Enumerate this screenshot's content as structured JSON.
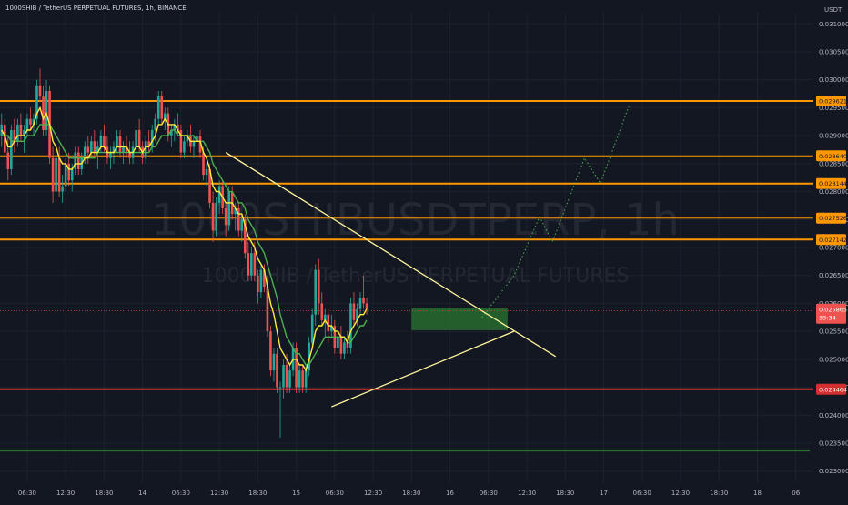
{
  "chart_data": {
    "type": "candlestick",
    "symbol_line": "1000SHIB / TetherUS PERPETUAL FUTURES, 1h, BINANCE",
    "currency_label": "USDT",
    "watermark": {
      "main": "1000SHIBUSDTPERP, 1h",
      "sub": "1000SHIB / TetherUS PERPETUAL FUTURES"
    },
    "y_axis": {
      "range": [
        0.0228,
        0.0312
      ],
      "ticks": [
        "0.031000",
        "0.030500",
        "0.030000",
        "0.029500",
        "0.029000",
        "0.028500",
        "0.028000",
        "0.027500",
        "0.027000",
        "0.026500",
        "0.026000",
        "0.025500",
        "0.025000",
        "0.024500",
        "0.024000",
        "0.023500",
        "0.023000"
      ]
    },
    "x_axis": {
      "ticks": [
        {
          "label": "06:30",
          "slot": 8
        },
        {
          "label": "12:30",
          "slot": 20
        },
        {
          "label": "18:30",
          "slot": 32
        },
        {
          "label": "14",
          "slot": 44
        },
        {
          "label": "06:30",
          "slot": 56
        },
        {
          "label": "12:30",
          "slot": 68
        },
        {
          "label": "18:30",
          "slot": 80
        },
        {
          "label": "15",
          "slot": 92
        },
        {
          "label": "06:30",
          "slot": 104
        },
        {
          "label": "12:30",
          "slot": 116
        },
        {
          "label": "18:30",
          "slot": 128
        },
        {
          "label": "16",
          "slot": 140
        },
        {
          "label": "06:30",
          "slot": 152
        },
        {
          "label": "12:30",
          "slot": 164
        },
        {
          "label": "18:30",
          "slot": 176
        },
        {
          "label": "17",
          "slot": 188
        },
        {
          "label": "06:30",
          "slot": 200
        },
        {
          "label": "12:30",
          "slot": 212
        },
        {
          "label": "18:30",
          "slot": 224
        },
        {
          "label": "18",
          "slot": 236
        },
        {
          "label": "06",
          "slot": 248
        }
      ]
    },
    "candles": [
      [
        0.029,
        0.0294,
        0.0288,
        0.0292
      ],
      [
        0.0292,
        0.0293,
        0.0286,
        0.0287
      ],
      [
        0.0287,
        0.029,
        0.0282,
        0.0284
      ],
      [
        0.0284,
        0.0292,
        0.0283,
        0.0291
      ],
      [
        0.0291,
        0.0293,
        0.0287,
        0.0289
      ],
      [
        0.0289,
        0.0293,
        0.0288,
        0.0292
      ],
      [
        0.0292,
        0.0294,
        0.0289,
        0.029
      ],
      [
        0.029,
        0.0292,
        0.0287,
        0.0291
      ],
      [
        0.0291,
        0.0294,
        0.029,
        0.0293
      ],
      [
        0.0293,
        0.0295,
        0.0291,
        0.0292
      ],
      [
        0.0292,
        0.0294,
        0.029,
        0.0293
      ],
      [
        0.0293,
        0.03,
        0.0292,
        0.0299
      ],
      [
        0.0299,
        0.0302,
        0.0296,
        0.0297
      ],
      [
        0.0297,
        0.0299,
        0.029,
        0.0291
      ],
      [
        0.0291,
        0.03,
        0.029,
        0.0298
      ],
      [
        0.0298,
        0.0299,
        0.0285,
        0.0286
      ],
      [
        0.0286,
        0.0288,
        0.0278,
        0.028
      ],
      [
        0.028,
        0.0287,
        0.0279,
        0.0286
      ],
      [
        0.0286,
        0.0288,
        0.0279,
        0.028
      ],
      [
        0.028,
        0.0283,
        0.0278,
        0.0281
      ],
      [
        0.0281,
        0.0286,
        0.028,
        0.0285
      ],
      [
        0.0285,
        0.0287,
        0.0281,
        0.0282
      ],
      [
        0.0282,
        0.0285,
        0.028,
        0.0284
      ],
      [
        0.0284,
        0.0288,
        0.0283,
        0.0287
      ],
      [
        0.0287,
        0.0288,
        0.0283,
        0.0284
      ],
      [
        0.0284,
        0.0287,
        0.0283,
        0.0286
      ],
      [
        0.0286,
        0.0289,
        0.0285,
        0.0288
      ],
      [
        0.0288,
        0.029,
        0.0285,
        0.0287
      ],
      [
        0.0287,
        0.029,
        0.0286,
        0.0289
      ],
      [
        0.0289,
        0.0291,
        0.0286,
        0.0287
      ],
      [
        0.0287,
        0.0289,
        0.0284,
        0.0288
      ],
      [
        0.0288,
        0.0291,
        0.0287,
        0.029
      ],
      [
        0.029,
        0.0292,
        0.0287,
        0.0288
      ],
      [
        0.0288,
        0.029,
        0.0285,
        0.0286
      ],
      [
        0.0286,
        0.0288,
        0.0284,
        0.0287
      ],
      [
        0.0287,
        0.0289,
        0.0285,
        0.0288
      ],
      [
        0.0288,
        0.0291,
        0.0287,
        0.029
      ],
      [
        0.029,
        0.0291,
        0.0286,
        0.0287
      ],
      [
        0.0287,
        0.0289,
        0.0285,
        0.0288
      ],
      [
        0.0288,
        0.029,
        0.0286,
        0.0287
      ],
      [
        0.0287,
        0.0289,
        0.0285,
        0.0286
      ],
      [
        0.0286,
        0.0289,
        0.0285,
        0.0288
      ],
      [
        0.0288,
        0.0292,
        0.0287,
        0.0291
      ],
      [
        0.0291,
        0.0293,
        0.0287,
        0.0288
      ],
      [
        0.0288,
        0.0289,
        0.0285,
        0.0286
      ],
      [
        0.0286,
        0.029,
        0.0285,
        0.0289
      ],
      [
        0.0289,
        0.0291,
        0.0287,
        0.0288
      ],
      [
        0.0288,
        0.0292,
        0.0287,
        0.0291
      ],
      [
        0.0291,
        0.0294,
        0.0289,
        0.0293
      ],
      [
        0.0293,
        0.0298,
        0.0292,
        0.0297
      ],
      [
        0.0297,
        0.0298,
        0.0292,
        0.0293
      ],
      [
        0.0293,
        0.0295,
        0.0291,
        0.0294
      ],
      [
        0.0294,
        0.0295,
        0.0289,
        0.029
      ],
      [
        0.029,
        0.0292,
        0.0288,
        0.0291
      ],
      [
        0.0291,
        0.0293,
        0.0289,
        0.0292
      ],
      [
        0.0292,
        0.0294,
        0.029,
        0.0291
      ],
      [
        0.0291,
        0.0292,
        0.0286,
        0.0287
      ],
      [
        0.0287,
        0.029,
        0.0286,
        0.0289
      ],
      [
        0.0289,
        0.0291,
        0.0288,
        0.029
      ],
      [
        0.029,
        0.0292,
        0.0287,
        0.0288
      ],
      [
        0.0288,
        0.029,
        0.0286,
        0.0289
      ],
      [
        0.0289,
        0.0291,
        0.0287,
        0.029
      ],
      [
        0.029,
        0.0291,
        0.0286,
        0.0287
      ],
      [
        0.0287,
        0.0288,
        0.0282,
        0.0283
      ],
      [
        0.0283,
        0.0285,
        0.0281,
        0.0284
      ],
      [
        0.0284,
        0.0285,
        0.0277,
        0.0278
      ],
      [
        0.0278,
        0.028,
        0.0271,
        0.0273
      ],
      [
        0.0273,
        0.0279,
        0.0272,
        0.0278
      ],
      [
        0.0278,
        0.0282,
        0.0276,
        0.0281
      ],
      [
        0.0281,
        0.0282,
        0.0276,
        0.0277
      ],
      [
        0.0277,
        0.0278,
        0.0272,
        0.0274
      ],
      [
        0.0274,
        0.0281,
        0.0273,
        0.028
      ],
      [
        0.028,
        0.0281,
        0.0275,
        0.0276
      ],
      [
        0.0276,
        0.0278,
        0.0273,
        0.0277
      ],
      [
        0.0277,
        0.0278,
        0.0272,
        0.0273
      ],
      [
        0.0273,
        0.0276,
        0.0271,
        0.0275
      ],
      [
        0.0275,
        0.0276,
        0.0268,
        0.0269
      ],
      [
        0.0269,
        0.0271,
        0.0264,
        0.0265
      ],
      [
        0.0265,
        0.027,
        0.0264,
        0.0269
      ],
      [
        0.0269,
        0.0271,
        0.0264,
        0.0265
      ],
      [
        0.0265,
        0.0266,
        0.026,
        0.0262
      ],
      [
        0.0262,
        0.0267,
        0.0261,
        0.0266
      ],
      [
        0.0266,
        0.0267,
        0.0262,
        0.0263
      ],
      [
        0.0263,
        0.0265,
        0.0254,
        0.0255
      ],
      [
        0.0255,
        0.0256,
        0.0247,
        0.0248
      ],
      [
        0.0248,
        0.0252,
        0.0246,
        0.0251
      ],
      [
        0.0251,
        0.0252,
        0.0244,
        0.0245
      ],
      [
        0.0245,
        0.0246,
        0.0236,
        0.0245
      ],
      [
        0.0245,
        0.025,
        0.0243,
        0.0249
      ],
      [
        0.0249,
        0.0251,
        0.0244,
        0.0245
      ],
      [
        0.0245,
        0.0249,
        0.0244,
        0.0248
      ],
      [
        0.0248,
        0.0253,
        0.0247,
        0.0252
      ],
      [
        0.0252,
        0.0253,
        0.0244,
        0.0245
      ],
      [
        0.0245,
        0.0249,
        0.0244,
        0.0248
      ],
      [
        0.0248,
        0.0249,
        0.0244,
        0.0245
      ],
      [
        0.0245,
        0.0249,
        0.0244,
        0.0248
      ],
      [
        0.0248,
        0.0254,
        0.0247,
        0.0253
      ],
      [
        0.0253,
        0.0259,
        0.0252,
        0.0258
      ],
      [
        0.0258,
        0.0267,
        0.0256,
        0.0266
      ],
      [
        0.0266,
        0.0268,
        0.0258,
        0.026
      ],
      [
        0.026,
        0.0262,
        0.0256,
        0.0257
      ],
      [
        0.0257,
        0.0259,
        0.0254,
        0.0258
      ],
      [
        0.0258,
        0.0259,
        0.0253,
        0.0255
      ],
      [
        0.0255,
        0.0258,
        0.0254,
        0.0256
      ],
      [
        0.0256,
        0.0257,
        0.0251,
        0.0252
      ],
      [
        0.0252,
        0.0255,
        0.0251,
        0.0254
      ],
      [
        0.0254,
        0.0256,
        0.025,
        0.0251
      ],
      [
        0.0251,
        0.0254,
        0.025,
        0.0253
      ],
      [
        0.0253,
        0.0255,
        0.0251,
        0.0252
      ],
      [
        0.0252,
        0.0261,
        0.0251,
        0.026
      ],
      [
        0.026,
        0.0262,
        0.0256,
        0.0257
      ],
      [
        0.0257,
        0.026,
        0.0256,
        0.0259
      ],
      [
        0.0259,
        0.0262,
        0.0258,
        0.0261
      ],
      [
        0.0261,
        0.0265,
        0.0259,
        0.026
      ],
      [
        0.026,
        0.0261,
        0.0258,
        0.0259
      ]
    ],
    "ma_fast": [
      0.0291,
      0.029,
      0.0288,
      0.0288,
      0.0289,
      0.029,
      0.029,
      0.029,
      0.0291,
      0.0291,
      0.0292,
      0.0294,
      0.0295,
      0.0293,
      0.0294,
      0.0292,
      0.0289,
      0.0288,
      0.0286,
      0.0285,
      0.0285,
      0.0284,
      0.0284,
      0.0285,
      0.0285,
      0.0285,
      0.0286,
      0.0286,
      0.0287,
      0.0287,
      0.0287,
      0.0288,
      0.0288,
      0.0287,
      0.0287,
      0.0287,
      0.0288,
      0.0288,
      0.0288,
      0.0288,
      0.0287,
      0.0287,
      0.0288,
      0.0288,
      0.0287,
      0.0288,
      0.0288,
      0.0289,
      0.029,
      0.0292,
      0.0292,
      0.0293,
      0.0292,
      0.0292,
      0.0292,
      0.0291,
      0.029,
      0.029,
      0.029,
      0.0289,
      0.0289,
      0.0289,
      0.0289,
      0.0287,
      0.0286,
      0.0284,
      0.0281,
      0.028,
      0.028,
      0.0279,
      0.0278,
      0.0278,
      0.0278,
      0.0277,
      0.0276,
      0.0276,
      0.0274,
      0.0272,
      0.0271,
      0.027,
      0.0268,
      0.0267,
      0.0266,
      0.0263,
      0.026,
      0.0258,
      0.0255,
      0.0252,
      0.0251,
      0.025,
      0.0249,
      0.025,
      0.025,
      0.0249,
      0.0249,
      0.0248,
      0.025,
      0.0252,
      0.0255,
      0.0256,
      0.0256,
      0.0257,
      0.0256,
      0.0256,
      0.0255,
      0.0255,
      0.0254,
      0.0254,
      0.0253,
      0.0255,
      0.0256,
      0.0257,
      0.0258,
      0.0258,
      0.0259
    ],
    "ma_slow": [
      0.029,
      0.029,
      0.029,
      0.0289,
      0.0289,
      0.0289,
      0.0289,
      0.0289,
      0.029,
      0.029,
      0.029,
      0.0291,
      0.0292,
      0.0292,
      0.0292,
      0.0292,
      0.0291,
      0.029,
      0.0289,
      0.0288,
      0.0287,
      0.0286,
      0.0286,
      0.0286,
      0.0286,
      0.0286,
      0.0286,
      0.0286,
      0.0286,
      0.0286,
      0.0287,
      0.0287,
      0.0287,
      0.0287,
      0.0287,
      0.0287,
      0.0287,
      0.0287,
      0.0287,
      0.0287,
      0.0287,
      0.0287,
      0.0287,
      0.0287,
      0.0287,
      0.0287,
      0.0287,
      0.0288,
      0.0288,
      0.0289,
      0.029,
      0.029,
      0.029,
      0.0291,
      0.0291,
      0.029,
      0.029,
      0.029,
      0.029,
      0.029,
      0.029,
      0.0289,
      0.0289,
      0.0289,
      0.0288,
      0.0287,
      0.0285,
      0.0284,
      0.0283,
      0.0282,
      0.0281,
      0.028,
      0.028,
      0.0279,
      0.0278,
      0.0278,
      0.0277,
      0.0275,
      0.0274,
      0.0273,
      0.0271,
      0.027,
      0.0269,
      0.0267,
      0.0265,
      0.0263,
      0.0261,
      0.0258,
      0.0256,
      0.0254,
      0.0253,
      0.0252,
      0.0251,
      0.0251,
      0.025,
      0.0249,
      0.0249,
      0.025,
      0.0251,
      0.0252,
      0.0253,
      0.0254,
      0.0254,
      0.0254,
      0.0254,
      0.0254,
      0.0254,
      0.0254,
      0.0253,
      0.0253,
      0.0254,
      0.0255,
      0.0256,
      0.0256,
      0.0257
    ],
    "horizontal_levels": [
      {
        "price": 0.029621,
        "color": "#ff9800",
        "width": 2,
        "badge": "0.029621",
        "badge_bg": "#ff9800",
        "badge_fg": "#131722"
      },
      {
        "price": 0.02864,
        "color": "#ff9800",
        "width": 1,
        "badge": "0.028640",
        "badge_bg": "#ff9800",
        "badge_fg": "#131722"
      },
      {
        "price": 0.028144,
        "color": "#ff9800",
        "width": 2,
        "badge": "0.028144",
        "badge_bg": "#ff9800",
        "badge_fg": "#131722"
      },
      {
        "price": 0.027526,
        "color": "#ff9800",
        "width": 1,
        "badge": "0.027526",
        "badge_bg": "#ff9800",
        "badge_fg": "#131722"
      },
      {
        "price": 0.027142,
        "color": "#ff9800",
        "width": 2,
        "badge": "0.027142",
        "badge_bg": "#ff9800",
        "badge_fg": "#131722"
      },
      {
        "price": 0.024464,
        "color": "#d32f2f",
        "width": 2,
        "badge": "0.024464",
        "badge_bg": "#d32f2f",
        "badge_fg": "#ffffff"
      }
    ],
    "green_line_price": 0.02336,
    "current_price": {
      "value": "0.025865",
      "countdown": "33:34",
      "color": "#ef5350"
    },
    "trendlines": [
      {
        "from": [
          70,
          0.0287
        ],
        "to": [
          173,
          0.02505
        ],
        "color": "#fff59d"
      },
      {
        "from": [
          103,
          0.02415
        ],
        "to": [
          160,
          0.0255
        ],
        "color": "#fff59d"
      }
    ],
    "zone": {
      "from_slot": 128,
      "to_slot": 158,
      "top": 0.02592,
      "bottom": 0.02552,
      "color": "#2e7d32"
    },
    "projection": [
      [
        150,
        0.02575
      ],
      [
        160,
        0.0265
      ],
      [
        168,
        0.02755
      ],
      [
        172,
        0.0271
      ],
      [
        182,
        0.0286
      ],
      [
        187,
        0.02815
      ],
      [
        196,
        0.02955
      ]
    ],
    "colors": {
      "up": "#26a69a",
      "down": "#ef5350",
      "ma_fast": "#ffeb3b",
      "ma_slow": "#4caf50",
      "background": "#131722",
      "grid": "#1e222d"
    }
  }
}
